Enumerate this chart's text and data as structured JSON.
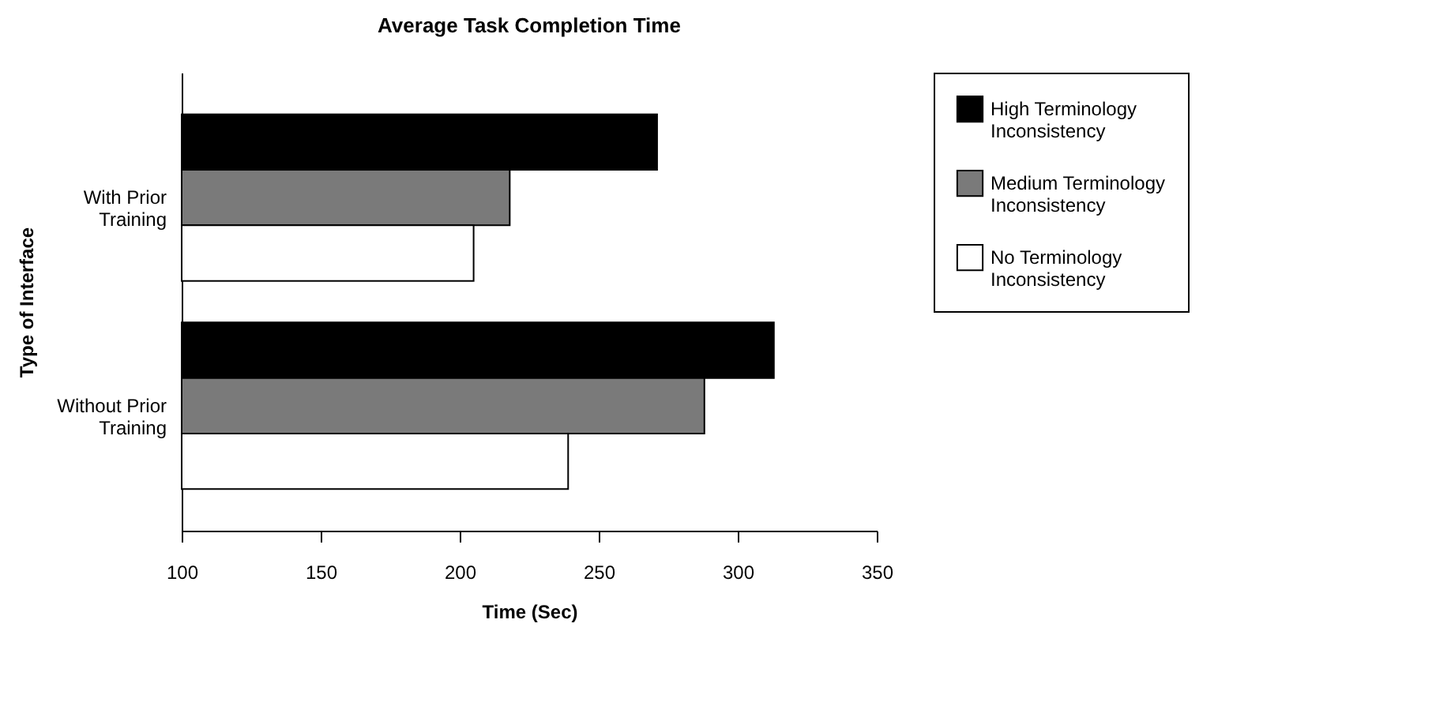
{
  "chart_data": {
    "type": "bar",
    "orientation": "horizontal",
    "title": "Average Task Completion Time",
    "xlabel": "Time (Sec)",
    "ylabel": "Type of Interface",
    "categories": [
      "With Prior Training",
      "Without Prior Training"
    ],
    "series": [
      {
        "name": "High Terminology Inconsistency",
        "color": "#000000",
        "values": [
          271,
          313
        ]
      },
      {
        "name": "Medium Terminology Inconsistency",
        "color": "#7a7a7a",
        "values": [
          218,
          288
        ]
      },
      {
        "name": "No Terminology Inconsistency",
        "color": "#ffffff",
        "values": [
          205,
          239
        ]
      }
    ],
    "xlim": [
      100,
      350
    ],
    "xticks": [
      100,
      150,
      200,
      250,
      300,
      350
    ],
    "grid": false,
    "legend": "right"
  }
}
